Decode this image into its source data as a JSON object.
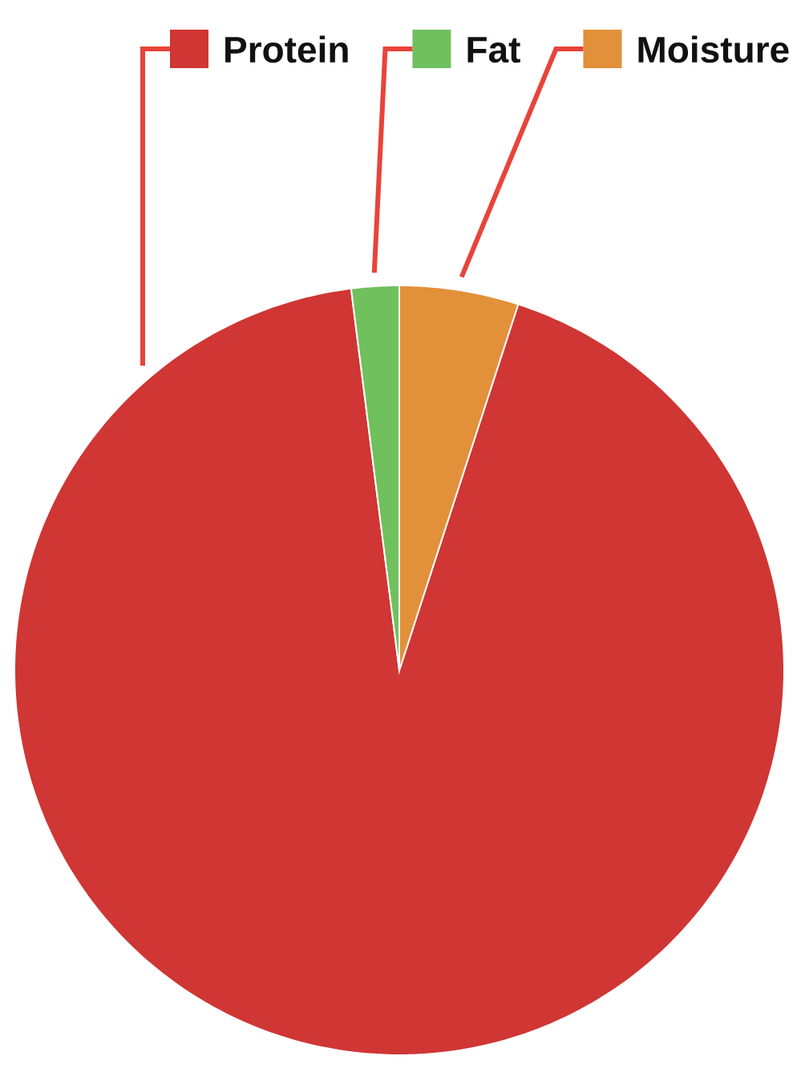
{
  "chart_data": {
    "type": "pie",
    "categories": [
      "Protein",
      "Fat",
      "Moisture"
    ],
    "values": [
      93,
      2,
      5
    ],
    "colors": [
      "#cf3634",
      "#70c05e",
      "#e3903a"
    ],
    "legend": "top"
  }
}
